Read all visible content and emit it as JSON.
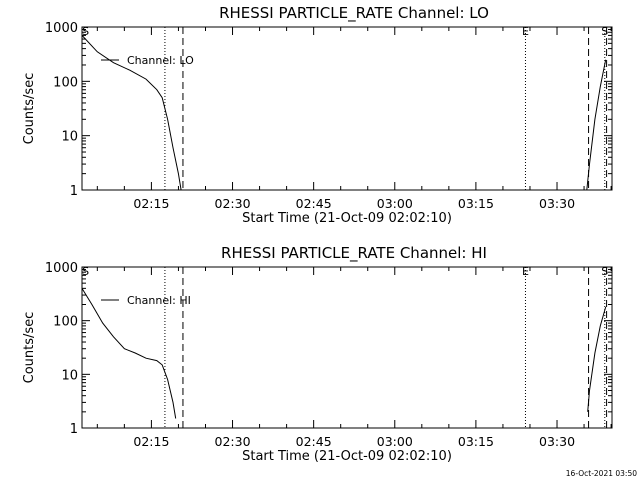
{
  "footer": {
    "timestamp": "16-Oct-2021 03:50"
  },
  "chart_data": [
    {
      "type": "line",
      "title": "RHESSI PARTICLE_RATE Channel: LO",
      "xlabel": "Start Time (21-Oct-09 02:02:10)",
      "ylabel": "Counts/sec",
      "yscale": "log",
      "ylim": [
        1,
        1000
      ],
      "xlim": [
        "02:02:10",
        "03:40:10"
      ],
      "x_ticks": [
        "02:15",
        "02:30",
        "02:45",
        "03:00",
        "03:15",
        "03:30"
      ],
      "y_ticks": [
        "1",
        "10",
        "100",
        "1000"
      ],
      "legend": {
        "label": "Channel: LO",
        "placement": "top-left"
      },
      "markers": [
        {
          "label": "S",
          "time": "02:02:50"
        },
        {
          "label": "E",
          "time": "03:24:10"
        },
        {
          "label": "S",
          "time": "03:38:50"
        }
      ],
      "dotted_lines": [
        "02:17:30",
        "03:24:10",
        "03:38:50"
      ],
      "dashed_lines": [
        "02:20:50",
        "03:35:50",
        "03:39:10"
      ],
      "series": [
        {
          "name": "Channel: LO",
          "x": [
            "02:02:10",
            "02:05:00",
            "02:08:00",
            "02:11:00",
            "02:14:00",
            "02:16:00",
            "02:17:00",
            "02:18:00",
            "02:19:00",
            "02:20:00",
            "02:20:30"
          ],
          "values": [
            700,
            350,
            220,
            160,
            110,
            70,
            50,
            20,
            6,
            2,
            1
          ]
        },
        {
          "name": "Channel: LO",
          "x": [
            "03:35:30",
            "03:36:00",
            "03:37:00",
            "03:38:00",
            "03:39:00"
          ],
          "values": [
            1,
            3,
            20,
            80,
            250
          ]
        }
      ]
    },
    {
      "type": "line",
      "title": "RHESSI PARTICLE_RATE Channel: HI",
      "xlabel": "Start Time (21-Oct-09 02:02:10)",
      "ylabel": "Counts/sec",
      "yscale": "log",
      "ylim": [
        1,
        1000
      ],
      "xlim": [
        "02:02:10",
        "03:40:10"
      ],
      "x_ticks": [
        "02:15",
        "02:30",
        "02:45",
        "03:00",
        "03:15",
        "03:30"
      ],
      "y_ticks": [
        "1",
        "10",
        "100",
        "1000"
      ],
      "legend": {
        "label": "Channel: HI",
        "placement": "top-left"
      },
      "markers": [
        {
          "label": "S",
          "time": "02:02:50"
        },
        {
          "label": "E",
          "time": "03:24:10"
        },
        {
          "label": "S",
          "time": "03:38:50"
        }
      ],
      "dotted_lines": [
        "02:17:30",
        "03:24:10",
        "03:38:50"
      ],
      "dashed_lines": [
        "02:20:50",
        "03:35:50",
        "03:39:10"
      ],
      "series": [
        {
          "name": "Channel: HI",
          "x": [
            "02:02:10",
            "02:04:00",
            "02:06:00",
            "02:08:00",
            "02:10:00",
            "02:12:00",
            "02:14:00",
            "02:16:00",
            "02:17:00",
            "02:18:00",
            "02:19:00",
            "02:19:30"
          ],
          "values": [
            400,
            200,
            90,
            50,
            30,
            25,
            20,
            18,
            15,
            8,
            3,
            1.5
          ]
        },
        {
          "name": "Channel: HI",
          "x": [
            "03:35:40",
            "03:36:00",
            "03:37:00",
            "03:38:00",
            "03:39:00"
          ],
          "values": [
            2,
            5,
            25,
            80,
            180
          ]
        }
      ]
    }
  ]
}
